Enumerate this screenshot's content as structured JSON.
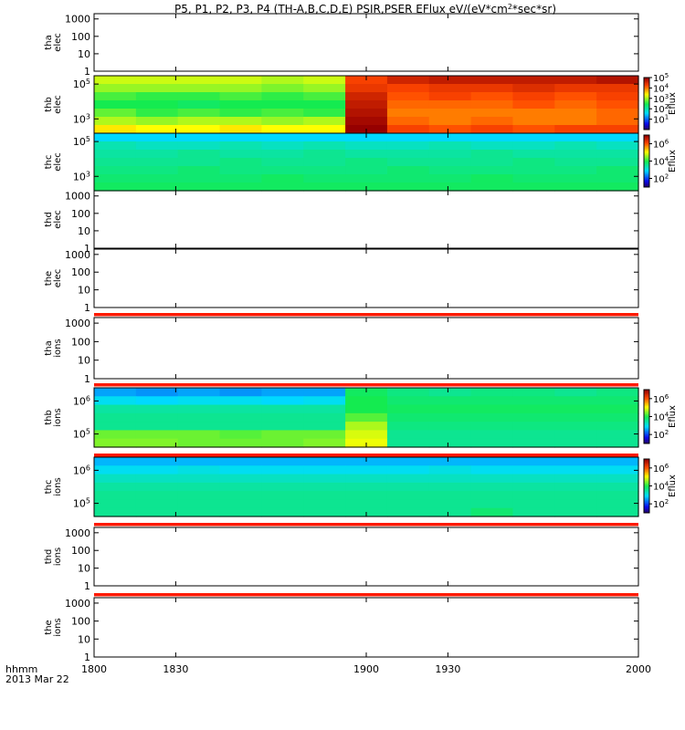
{
  "chart_data": {
    "type": "heatmap",
    "title": "P5, P1, P2, P3, P4 (TH-A,B,C,D,E) PSIR,PSER EFlux eV/(eV*cm²*sec*sr)",
    "title_parts": {
      "main": "P5, P1, P2, P3, P4 (TH-A,B,C,D,E) PSIR,PSER EFlux eV/(eV*cm",
      "sup": "2",
      "tail": "*sec*sr)"
    },
    "x_axis": {
      "range": [
        1800,
        2000
      ],
      "ticks": [
        {
          "value": 1800,
          "label": "1800"
        },
        {
          "value": 1830,
          "label": "1830"
        },
        {
          "value": 1900,
          "label": "1900"
        },
        {
          "value": 1930,
          "label": "1930"
        },
        {
          "value": 2000,
          "label": "2000"
        }
      ],
      "label_line1": "hhmm",
      "label_line2": "2013 Mar 22"
    },
    "colorbar_label": "Eflux",
    "panels": [
      {
        "id": "tha-elec",
        "line1": "tha",
        "line2": "elec",
        "kind": "empty",
        "ticks": [
          {
            "value": 1000,
            "label": "1000"
          },
          {
            "value": 100,
            "label": "100"
          },
          {
            "value": 10,
            "label": "10"
          },
          {
            "value": 1,
            "label": "1"
          }
        ],
        "ylim": [
          1,
          2000
        ]
      },
      {
        "id": "thb-elec",
        "line1": "thb",
        "line2": "elec",
        "kind": "spectrogram",
        "ticks": [
          {
            "value": 100000,
            "mant": "10",
            "exp": "5"
          },
          {
            "value": 1000,
            "mant": "10",
            "exp": "3"
          }
        ],
        "ylim": [
          150,
          300000
        ],
        "colorbar": {
          "range": [
            1,
            100000
          ],
          "ticks": [
            {
              "value": 100000,
              "mant": "10",
              "exp": "5"
            },
            {
              "value": 10000,
              "mant": "10",
              "exp": "4"
            },
            {
              "value": 1000,
              "mant": "10",
              "exp": "3"
            },
            {
              "value": 100,
              "mant": "10",
              "exp": "2"
            },
            {
              "value": 10,
              "mant": "10",
              "exp": "1"
            }
          ]
        },
        "rows": [
          [
            3.2,
            3.2,
            3.2,
            3.2,
            3.1,
            3.2,
            4.3,
            4.6,
            4.7,
            4.7,
            4.7,
            4.7,
            4.8
          ],
          [
            3.0,
            3.0,
            3.0,
            3.0,
            2.9,
            3.0,
            4.4,
            4.3,
            4.4,
            4.4,
            4.5,
            4.4,
            4.4
          ],
          [
            2.7,
            2.6,
            2.6,
            2.7,
            2.6,
            2.7,
            4.6,
            4.2,
            4.3,
            4.2,
            4.3,
            4.2,
            4.3
          ],
          [
            2.5,
            2.5,
            2.4,
            2.5,
            2.5,
            2.5,
            4.7,
            4.1,
            4.1,
            4.1,
            4.2,
            4.1,
            4.2
          ],
          [
            2.8,
            2.6,
            2.7,
            2.6,
            2.7,
            2.6,
            4.8,
            4.0,
            4.0,
            4.0,
            4.0,
            4.0,
            4.1
          ],
          [
            3.1,
            3.0,
            3.1,
            3.1,
            3.0,
            3.1,
            4.9,
            4.1,
            4.0,
            4.1,
            4.0,
            4.0,
            4.1
          ],
          [
            3.5,
            3.4,
            3.4,
            3.5,
            3.4,
            3.4,
            5.0,
            4.3,
            4.2,
            4.3,
            4.2,
            4.3,
            4.3
          ]
        ]
      },
      {
        "id": "thc-elec",
        "line1": "thc",
        "line2": "elec",
        "kind": "spectrogram",
        "ticks": [
          {
            "value": 100000,
            "mant": "10",
            "exp": "5"
          },
          {
            "value": 1000,
            "mant": "10",
            "exp": "3"
          }
        ],
        "ylim": [
          150,
          300000
        ],
        "colorbar": {
          "range": [
            10,
            10000000
          ],
          "ticks": [
            {
              "value": 1000000,
              "mant": "10",
              "exp": "6"
            },
            {
              "value": 10000,
              "mant": "10",
              "exp": "4"
            },
            {
              "value": 100,
              "mant": "10",
              "exp": "2"
            }
          ]
        },
        "rows": [
          [
            2.9,
            2.9,
            2.9,
            2.9,
            2.9,
            2.9,
            2.9,
            2.9,
            2.9,
            2.9,
            2.9,
            2.9,
            2.9
          ],
          [
            3.4,
            3.3,
            3.3,
            3.4,
            3.3,
            3.4,
            3.3,
            3.3,
            3.4,
            3.3,
            3.3,
            3.4,
            3.3
          ],
          [
            3.5,
            3.5,
            3.6,
            3.5,
            3.5,
            3.6,
            3.5,
            3.5,
            3.5,
            3.6,
            3.5,
            3.5,
            3.5
          ],
          [
            3.6,
            3.6,
            3.6,
            3.7,
            3.6,
            3.6,
            3.7,
            3.6,
            3.6,
            3.6,
            3.7,
            3.6,
            3.6
          ],
          [
            3.7,
            3.7,
            3.8,
            3.7,
            3.7,
            3.7,
            3.7,
            3.8,
            3.7,
            3.7,
            3.7,
            3.7,
            3.8
          ],
          [
            3.8,
            3.8,
            3.8,
            3.8,
            3.9,
            3.8,
            3.8,
            3.8,
            3.8,
            3.9,
            3.8,
            3.8,
            3.8
          ],
          [
            3.9,
            3.9,
            3.9,
            3.9,
            3.9,
            3.9,
            3.9,
            3.9,
            3.9,
            3.9,
            3.9,
            3.9,
            3.9
          ]
        ]
      },
      {
        "id": "thd-elec",
        "line1": "thd",
        "line2": "elec",
        "kind": "empty",
        "ticks": [
          {
            "value": 1000,
            "label": "1000"
          },
          {
            "value": 100,
            "label": "100"
          },
          {
            "value": 10,
            "label": "10"
          },
          {
            "value": 1,
            "label": "1"
          }
        ],
        "ylim": [
          1,
          2000
        ]
      },
      {
        "id": "the-elec",
        "line1": "the",
        "line2": "elec",
        "kind": "empty",
        "ticks": [
          {
            "value": 1000,
            "label": "1000"
          },
          {
            "value": 100,
            "label": "100"
          },
          {
            "value": 10,
            "label": "10"
          },
          {
            "value": 1,
            "label": "1"
          }
        ],
        "ylim": [
          1,
          2000
        ]
      },
      {
        "id": "tha-ions",
        "line1": "tha",
        "line2": "ions",
        "kind": "empty",
        "ticks": [
          {
            "value": 1000,
            "label": "1000"
          },
          {
            "value": 100,
            "label": "100"
          },
          {
            "value": 10,
            "label": "10"
          },
          {
            "value": 1,
            "label": "1"
          }
        ],
        "ylim": [
          1,
          2000
        ]
      },
      {
        "id": "thb-ions",
        "line1": "thb",
        "line2": "ions",
        "kind": "spectrogram",
        "ticks": [
          {
            "value": 1000000,
            "mant": "10",
            "exp": "6"
          },
          {
            "value": 100000,
            "mant": "10",
            "exp": "5"
          }
        ],
        "ylim": [
          40000,
          2500000
        ],
        "colorbar": {
          "range": [
            10,
            10000000
          ],
          "ticks": [
            {
              "value": 1000000,
              "mant": "10",
              "exp": "6"
            },
            {
              "value": 10000,
              "mant": "10",
              "exp": "4"
            },
            {
              "value": 100,
              "mant": "10",
              "exp": "2"
            }
          ]
        },
        "rows": [
          [
            2.6,
            2.5,
            2.6,
            2.5,
            2.6,
            2.6,
            3.9,
            3.7,
            3.6,
            3.7,
            3.7,
            3.6,
            3.7
          ],
          [
            3.0,
            2.9,
            3.0,
            3.0,
            2.9,
            3.0,
            4.0,
            3.8,
            3.8,
            3.8,
            3.8,
            3.8,
            3.8
          ],
          [
            3.5,
            3.5,
            3.5,
            3.5,
            3.5,
            3.5,
            4.0,
            3.9,
            3.9,
            3.9,
            3.9,
            3.9,
            3.9
          ],
          [
            3.6,
            3.6,
            3.6,
            3.6,
            3.6,
            3.6,
            4.3,
            3.8,
            3.8,
            3.8,
            3.8,
            3.8,
            3.8
          ],
          [
            3.6,
            3.6,
            3.6,
            3.6,
            3.6,
            3.6,
            4.7,
            3.7,
            3.7,
            3.7,
            3.7,
            3.7,
            3.7
          ],
          [
            4.4,
            4.4,
            4.4,
            4.3,
            4.4,
            4.4,
            4.9,
            3.6,
            3.6,
            3.6,
            3.6,
            3.6,
            3.6
          ],
          [
            4.5,
            4.5,
            4.4,
            4.4,
            4.4,
            4.5,
            5.0,
            3.6,
            3.6,
            3.6,
            3.6,
            3.6,
            3.6
          ]
        ]
      },
      {
        "id": "thc-ions",
        "line1": "thc",
        "line2": "ions",
        "kind": "spectrogram",
        "ticks": [
          {
            "value": 1000000,
            "mant": "10",
            "exp": "6"
          },
          {
            "value": 100000,
            "mant": "10",
            "exp": "5"
          }
        ],
        "ylim": [
          40000,
          2500000
        ],
        "colorbar": {
          "range": [
            10,
            10000000
          ],
          "ticks": [
            {
              "value": 1000000,
              "mant": "10",
              "exp": "6"
            },
            {
              "value": 10000,
              "mant": "10",
              "exp": "4"
            },
            {
              "value": 100,
              "mant": "10",
              "exp": "2"
            }
          ]
        },
        "rows": [
          [
            2.7,
            2.7,
            2.7,
            2.7,
            2.7,
            2.7,
            2.7,
            2.7,
            2.7,
            2.7,
            2.7,
            2.7,
            2.7
          ],
          [
            3.0,
            3.0,
            3.1,
            3.0,
            3.0,
            3.0,
            3.0,
            3.0,
            3.1,
            3.0,
            3.0,
            3.0,
            3.0
          ],
          [
            3.3,
            3.3,
            3.3,
            3.3,
            3.3,
            3.3,
            3.3,
            3.3,
            3.3,
            3.3,
            3.3,
            3.3,
            3.3
          ],
          [
            3.5,
            3.5,
            3.5,
            3.5,
            3.5,
            3.5,
            3.5,
            3.5,
            3.5,
            3.5,
            3.5,
            3.5,
            3.5
          ],
          [
            3.6,
            3.6,
            3.6,
            3.6,
            3.6,
            3.6,
            3.6,
            3.6,
            3.6,
            3.6,
            3.6,
            3.6,
            3.6
          ],
          [
            3.6,
            3.6,
            3.6,
            3.6,
            3.6,
            3.6,
            3.6,
            3.6,
            3.6,
            3.6,
            3.6,
            3.6,
            3.6
          ],
          [
            3.6,
            3.6,
            3.6,
            3.6,
            3.6,
            3.6,
            3.6,
            3.6,
            3.6,
            3.8,
            3.6,
            3.6,
            3.6
          ]
        ]
      },
      {
        "id": "thd-ions",
        "line1": "thd",
        "line2": "ions",
        "kind": "empty",
        "ticks": [
          {
            "value": 1000,
            "label": "1000"
          },
          {
            "value": 100,
            "label": "100"
          },
          {
            "value": 10,
            "label": "10"
          },
          {
            "value": 1,
            "label": "1"
          }
        ],
        "ylim": [
          1,
          2000
        ]
      },
      {
        "id": "the-ions",
        "line1": "the",
        "line2": "ions",
        "kind": "empty",
        "ticks": [
          {
            "value": 1000,
            "label": "1000"
          },
          {
            "value": 100,
            "label": "100"
          },
          {
            "value": 10,
            "label": "10"
          },
          {
            "value": 1,
            "label": "1"
          }
        ],
        "ylim": [
          1,
          2000
        ]
      }
    ]
  }
}
